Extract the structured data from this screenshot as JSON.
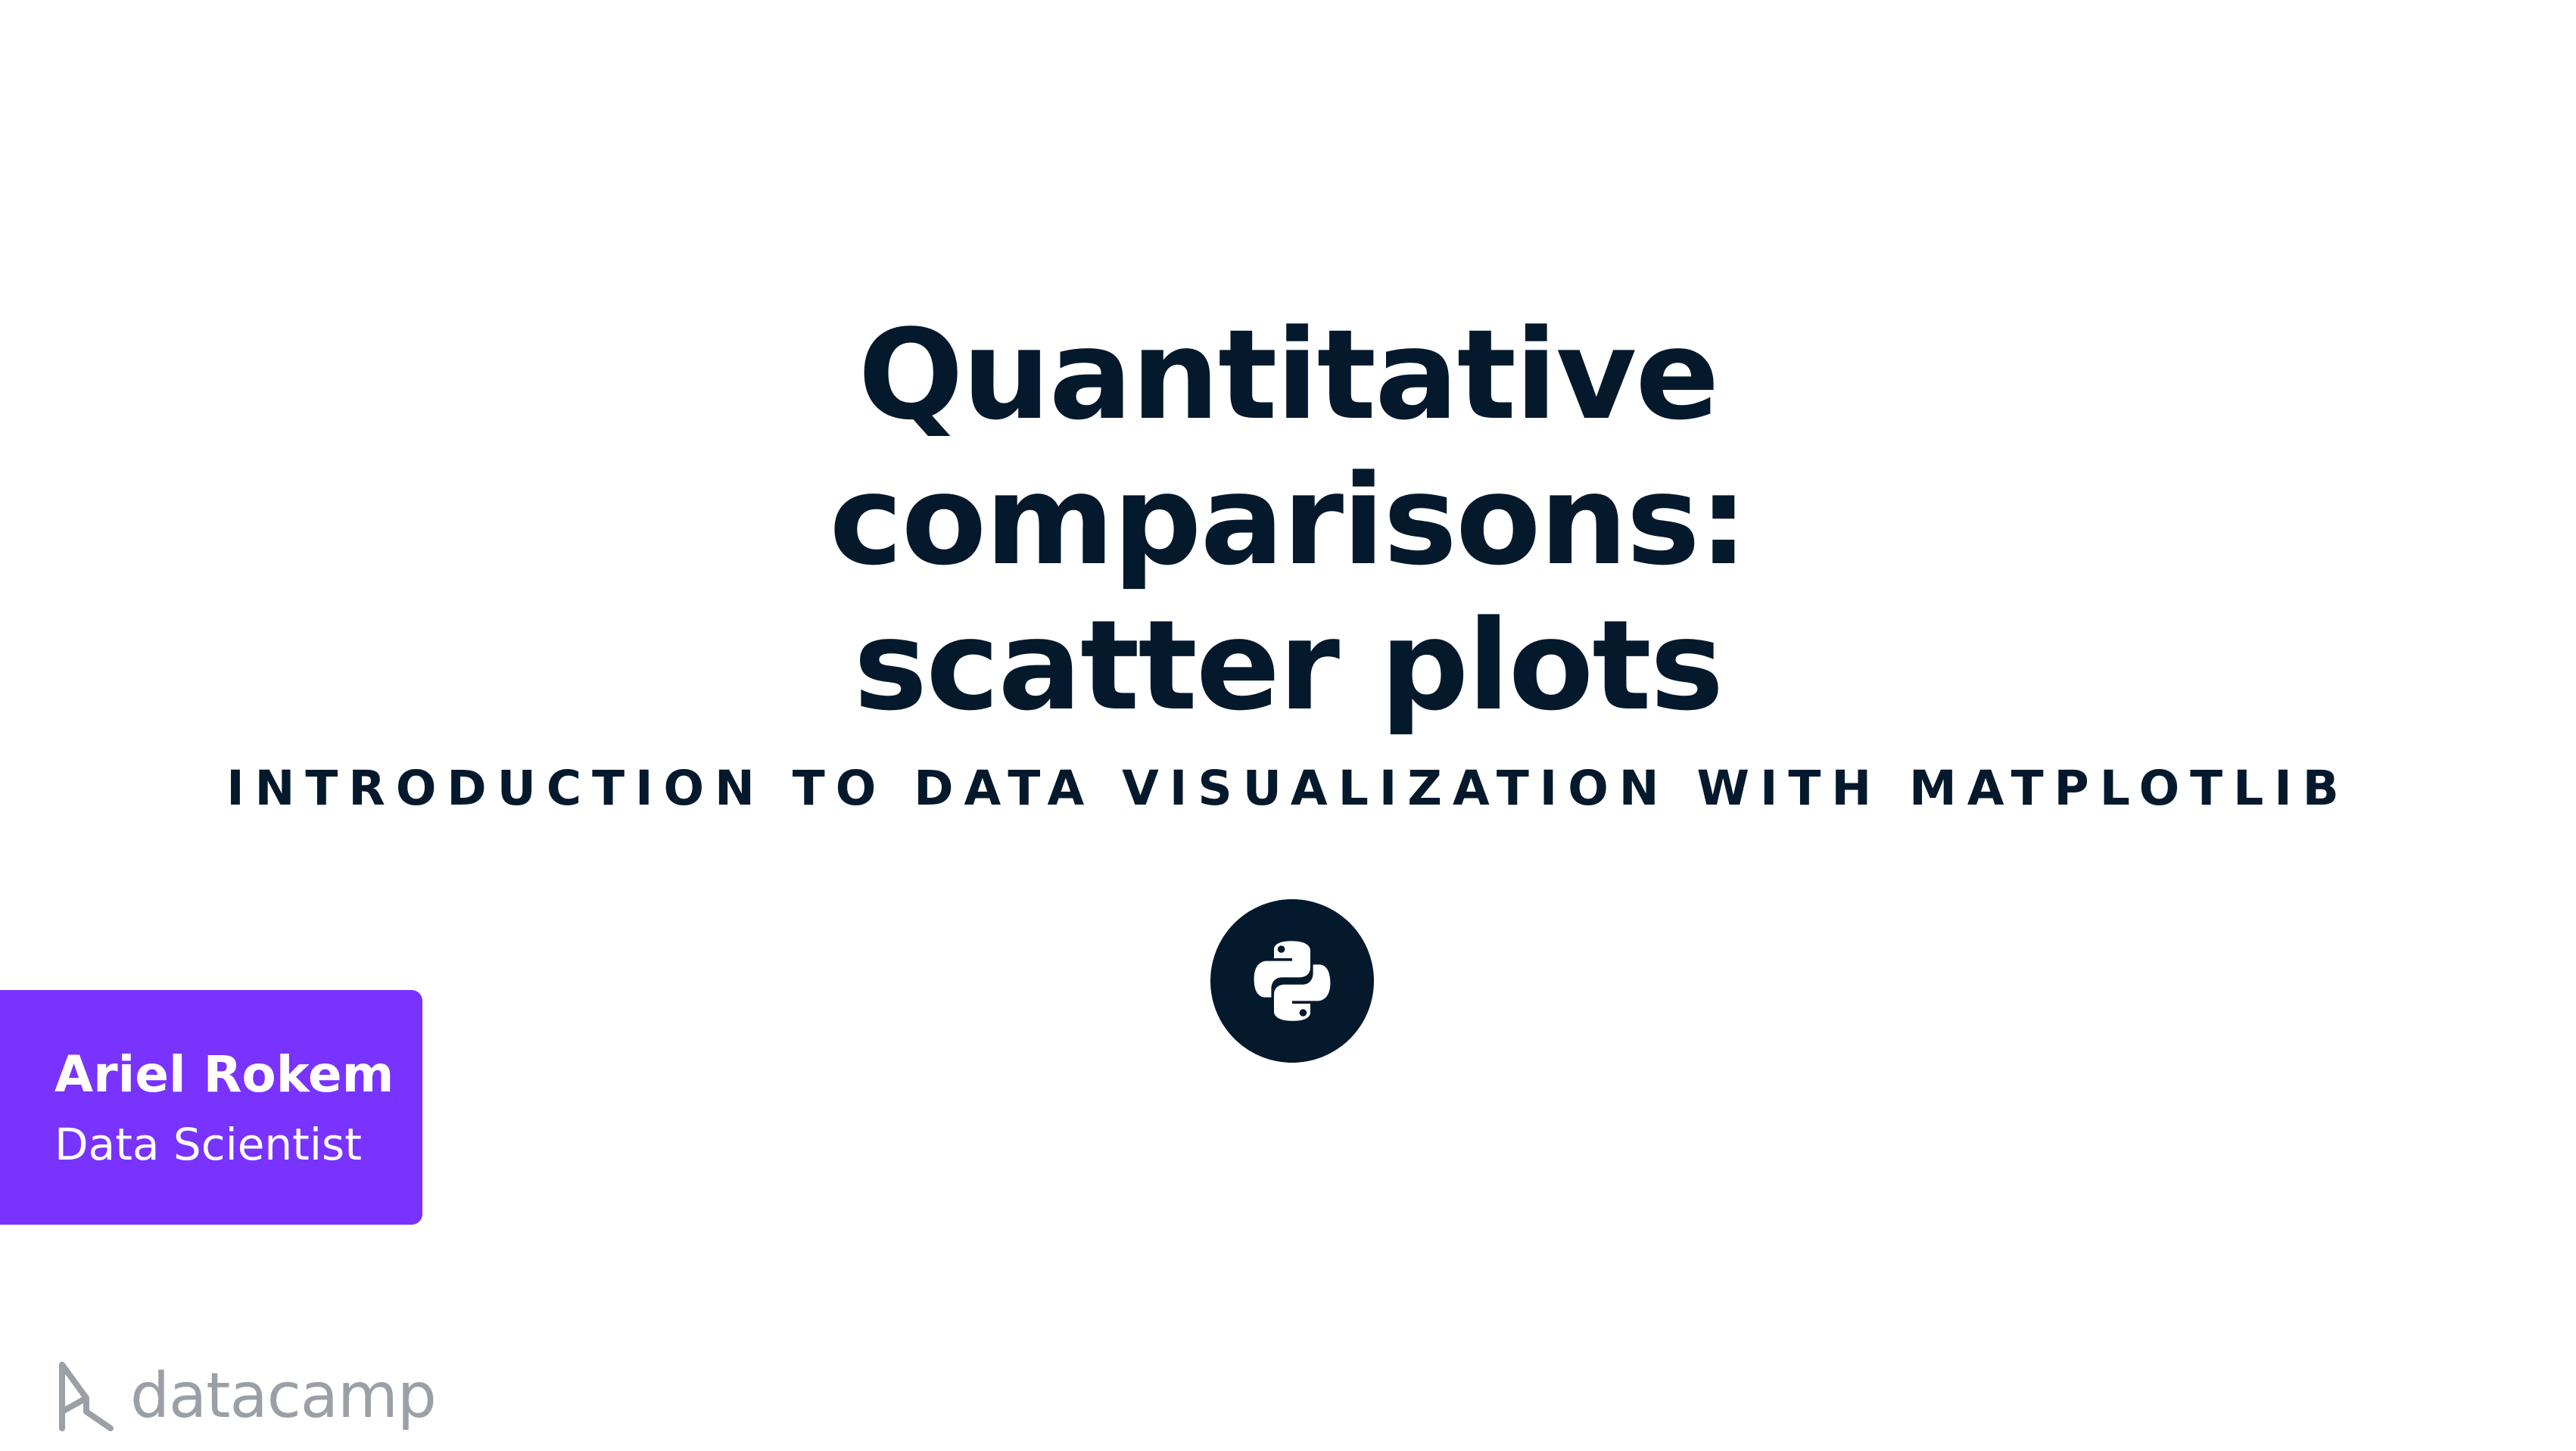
{
  "slide": {
    "title_lines": [
      "Quantitative",
      "comparisons:",
      "scatter plots"
    ],
    "subtitle": "INTRODUCTION TO DATA VISUALIZATION WITH MATPLOTLIB"
  },
  "author": {
    "name": "Ariel Rokem",
    "role": "Data Scientist"
  },
  "brand": {
    "name": "datacamp"
  },
  "icons": {
    "course_badge": "python-logo-icon",
    "brand_mark": "datacamp-logo-icon"
  },
  "colors": {
    "text": "#05192d",
    "accent": "#7933ff",
    "brand_gray": "#9aa0a6",
    "background": "#ffffff"
  }
}
